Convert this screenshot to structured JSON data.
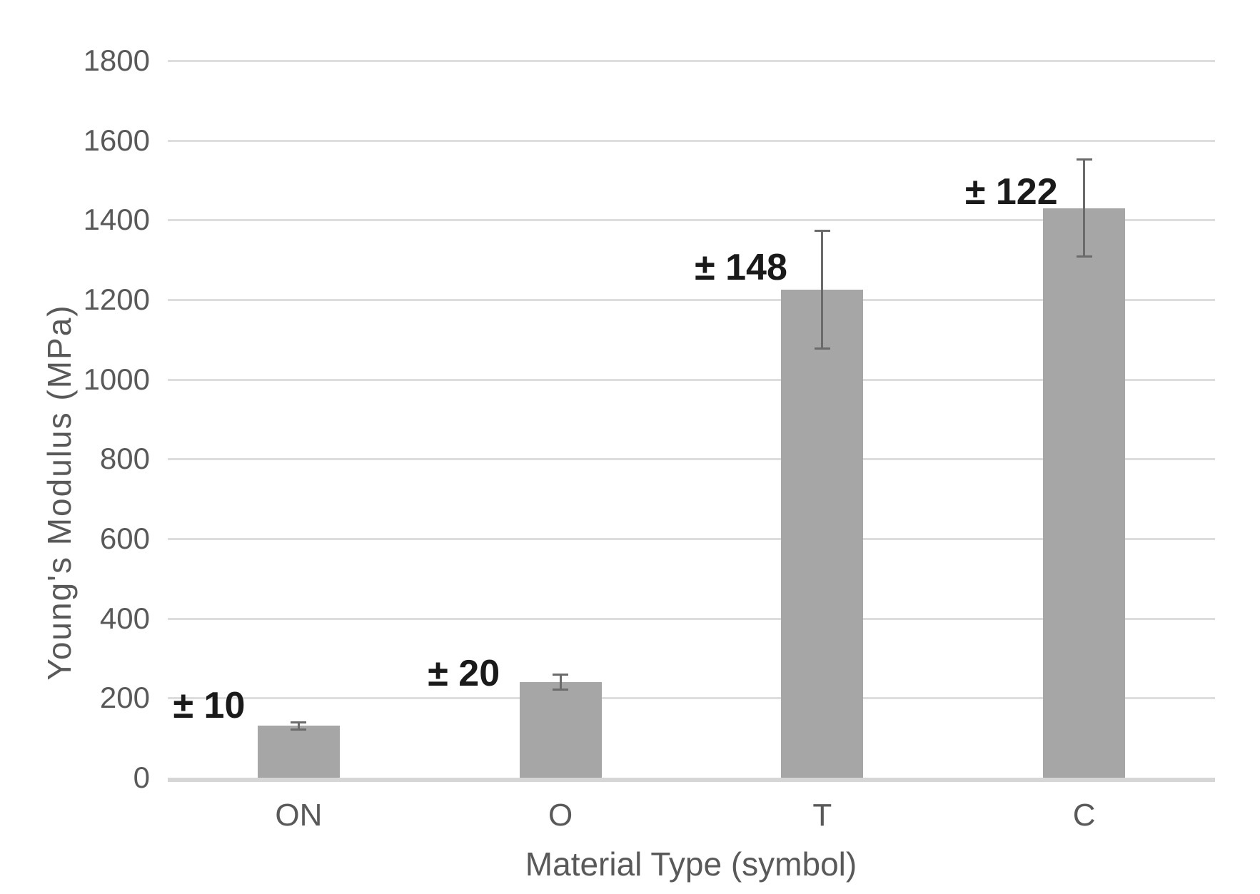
{
  "chart_data": {
    "type": "bar",
    "title": "",
    "categories": [
      "ON",
      "O",
      "T",
      "C"
    ],
    "values": [
      130,
      240,
      1225,
      1430
    ],
    "error_values": [
      10,
      20,
      148,
      122
    ],
    "error_annotations": [
      "± 10",
      "± 20",
      "± 148",
      "± 122"
    ],
    "xlabel": "Material Type (symbol)",
    "ylabel": "Young's Modulus (MPa)",
    "ylim": [
      0,
      1800
    ],
    "ytick_interval": 200,
    "ytick_labels": [
      "0",
      "200",
      "400",
      "600",
      "800",
      "1000",
      "1200",
      "1400",
      "1600",
      "1800"
    ],
    "grid": "horizontal",
    "legend": "none",
    "colors": {
      "bar": "#a6a6a6",
      "gridline": "#dddddd",
      "axis_line": "#d6d6d6",
      "error_bar": "#6b6b6b",
      "tick_label": "#595959",
      "axis_title": "#595959",
      "annotation": "#1a1a1a",
      "background": "#ffffff"
    }
  }
}
